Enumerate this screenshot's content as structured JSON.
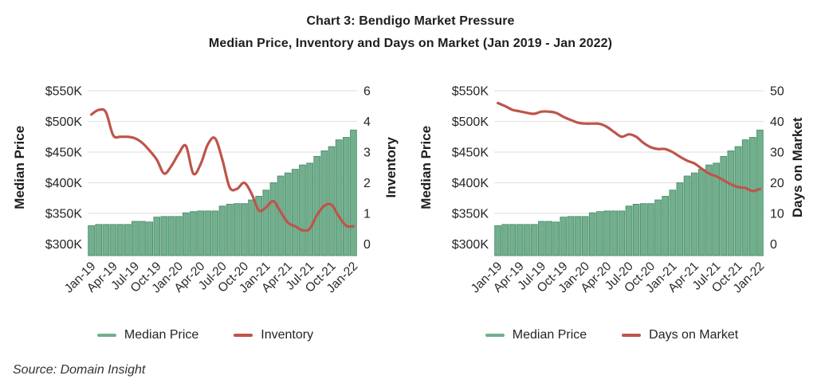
{
  "header": {
    "title_line1": "Chart 3: Bendigo Market Pressure",
    "title_line2": "Median Price, Inventory and Days on Market (Jan 2019 - Jan 2022)"
  },
  "source": "Source: Domain Insight",
  "colors": {
    "bar_fill": "#72af8c",
    "bar_border": "#4e8f70",
    "line": "#be554b",
    "grid": "#e4e4e4",
    "tick_text": "#262626",
    "axis_title_text": "#1e1e1e"
  },
  "chart_data": [
    {
      "type": "bar+line combo",
      "left_axis": {
        "label": "Median Price",
        "ticks": [
          "$550K",
          "$500K",
          "$450K",
          "$400K",
          "$350K",
          "$300K"
        ],
        "min": 300,
        "max": 550,
        "unit": "$K"
      },
      "right_axis": {
        "label": "Inventory",
        "ticks": [
          "6",
          "4",
          "3",
          "2",
          "1",
          "0"
        ],
        "map": "piecewise4to6"
      },
      "categories": [
        "Jan-19",
        "Feb-19",
        "Mar-19",
        "Apr-19",
        "May-19",
        "Jun-19",
        "Jul-19",
        "Aug-19",
        "Sep-19",
        "Oct-19",
        "Nov-19",
        "Dec-19",
        "Jan-20",
        "Feb-20",
        "Mar-20",
        "Apr-20",
        "May-20",
        "Jun-20",
        "Jul-20",
        "Aug-20",
        "Sep-20",
        "Oct-20",
        "Nov-20",
        "Dec-20",
        "Jan-21",
        "Feb-21",
        "Mar-21",
        "Apr-21",
        "May-21",
        "Jun-21",
        "Jul-21",
        "Aug-21",
        "Sep-21",
        "Oct-21",
        "Nov-21",
        "Dec-21",
        "Jan-22"
      ],
      "x_tick_labels": [
        "Jan-19",
        "Apr-19",
        "Jul-19",
        "Oct-19",
        "Jan-20",
        "Apr-20",
        "Jul-20",
        "Oct-20",
        "Jan-21",
        "Apr-21",
        "Jul-21",
        "Oct-21",
        "Jan-22"
      ],
      "bar_series": {
        "name": "Median Price",
        "values": [
          330,
          332,
          332,
          332,
          332,
          332,
          337,
          337,
          336,
          344,
          345,
          345,
          345,
          351,
          353,
          354,
          354,
          354,
          362,
          365,
          366,
          366,
          372,
          378,
          388,
          400,
          411,
          416,
          422,
          429,
          432,
          443,
          452,
          459,
          470,
          474,
          486
        ]
      },
      "line_series": {
        "name": "Inventory",
        "values": [
          4.45,
          4.75,
          4.6,
          3.55,
          3.5,
          3.5,
          3.45,
          3.3,
          3.05,
          2.75,
          2.3,
          2.55,
          2.95,
          3.2,
          2.3,
          2.6,
          3.25,
          3.45,
          2.75,
          1.85,
          1.8,
          2.0,
          1.65,
          1.1,
          1.2,
          1.4,
          1.05,
          0.7,
          0.58,
          0.45,
          0.5,
          0.95,
          1.25,
          1.28,
          0.9,
          0.6,
          0.58
        ]
      },
      "legend": [
        "Median Price",
        "Inventory"
      ],
      "grid": "horizontal only",
      "legend_position": "bottom center"
    },
    {
      "type": "bar+line combo",
      "left_axis": {
        "label": "Median Price",
        "ticks": [
          "$550K",
          "$500K",
          "$450K",
          "$400K",
          "$350K",
          "$300K"
        ],
        "min": 300,
        "max": 550,
        "unit": "$K"
      },
      "right_axis": {
        "label": "Days on Market",
        "ticks": [
          "50",
          "40",
          "30",
          "20",
          "10",
          "0"
        ],
        "map": "linear",
        "max": 50
      },
      "categories": [
        "Jan-19",
        "Feb-19",
        "Mar-19",
        "Apr-19",
        "May-19",
        "Jun-19",
        "Jul-19",
        "Aug-19",
        "Sep-19",
        "Oct-19",
        "Nov-19",
        "Dec-19",
        "Jan-20",
        "Feb-20",
        "Mar-20",
        "Apr-20",
        "May-20",
        "Jun-20",
        "Jul-20",
        "Aug-20",
        "Sep-20",
        "Oct-20",
        "Nov-20",
        "Dec-20",
        "Jan-21",
        "Feb-21",
        "Mar-21",
        "Apr-21",
        "May-21",
        "Jun-21",
        "Jul-21",
        "Aug-21",
        "Sep-21",
        "Oct-21",
        "Nov-21",
        "Dec-21",
        "Jan-22"
      ],
      "x_tick_labels": [
        "Jan-19",
        "Apr-19",
        "Jul-19",
        "Oct-19",
        "Jan-20",
        "Apr-20",
        "Jul-20",
        "Oct-20",
        "Jan-21",
        "Apr-21",
        "Jul-21",
        "Oct-21",
        "Jan-22"
      ],
      "bar_series": {
        "name": "Median Price",
        "values": [
          330,
          332,
          332,
          332,
          332,
          332,
          337,
          337,
          336,
          344,
          345,
          345,
          345,
          351,
          353,
          354,
          354,
          354,
          362,
          365,
          366,
          366,
          372,
          378,
          388,
          400,
          411,
          416,
          422,
          429,
          432,
          443,
          452,
          459,
          470,
          474,
          486
        ]
      },
      "line_series": {
        "name": "Days on Market",
        "values": [
          46,
          45,
          43.8,
          43.3,
          42.8,
          42.5,
          43.2,
          43.2,
          42.8,
          41.5,
          40.5,
          39.6,
          39.3,
          39.3,
          39.2,
          38.2,
          36.5,
          35,
          35.8,
          35,
          33,
          31.6,
          31,
          31,
          30,
          28.5,
          27.2,
          26.3,
          24.6,
          23,
          22.1,
          20.8,
          19.5,
          18.6,
          18.3,
          17.3,
          18
        ]
      },
      "legend": [
        "Median Price",
        "Days on Market"
      ],
      "grid": "horizontal only",
      "legend_position": "bottom center"
    }
  ]
}
